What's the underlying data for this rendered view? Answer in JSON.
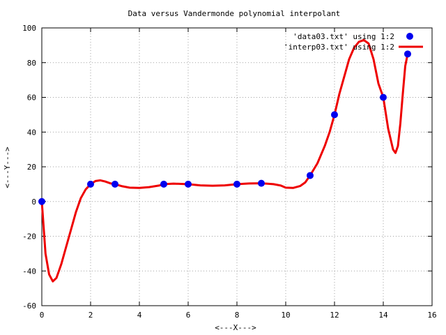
{
  "chart_data": {
    "type": "scatter",
    "title": "Data versus Vandermonde polynomial interpolant",
    "xlabel": "<---X--->",
    "ylabel": "<---Y--->",
    "xlim": [
      0,
      16
    ],
    "ylim": [
      -60,
      100
    ],
    "xticks": [
      0,
      2,
      4,
      6,
      8,
      10,
      12,
      14,
      16
    ],
    "yticks": [
      -60,
      -40,
      -20,
      0,
      20,
      40,
      60,
      80,
      100
    ],
    "grid": true,
    "legend_position": "top-right",
    "series": [
      {
        "name": "'data03.txt' using 1:2",
        "kind": "points",
        "color": "#0000ee",
        "x": [
          0,
          2,
          3,
          5,
          6,
          8,
          9,
          11,
          12,
          14,
          15
        ],
        "y": [
          0,
          10,
          10,
          10,
          10,
          10,
          10.5,
          15,
          50,
          60,
          85
        ]
      },
      {
        "name": "'interp03.txt' using 1:2",
        "kind": "line",
        "color": "#ee0000",
        "x": [
          0,
          0.15,
          0.3,
          0.45,
          0.6,
          0.8,
          1.0,
          1.2,
          1.4,
          1.6,
          1.8,
          2.0,
          2.2,
          2.4,
          2.6,
          2.8,
          3.0,
          3.3,
          3.6,
          4.0,
          4.4,
          4.8,
          5.0,
          5.4,
          5.8,
          6.0,
          6.5,
          7.0,
          7.5,
          8.0,
          8.5,
          9.0,
          9.5,
          9.8,
          10.0,
          10.3,
          10.6,
          10.8,
          11.0,
          11.3,
          11.6,
          11.8,
          12.0,
          12.2,
          12.4,
          12.6,
          12.8,
          13.0,
          13.2,
          13.4,
          13.6,
          13.8,
          14.0,
          14.2,
          14.4,
          14.5,
          14.6,
          14.7,
          14.8,
          14.9,
          15.0
        ],
        "y": [
          0,
          -30,
          -42,
          -46,
          -44,
          -36,
          -26,
          -16,
          -6,
          2,
          7,
          10,
          11.8,
          12.2,
          11.5,
          10.5,
          10,
          8.8,
          8,
          7.8,
          8.3,
          9.2,
          10,
          10.3,
          10.1,
          10,
          9.3,
          9.1,
          9.3,
          10,
          10.4,
          10.5,
          10,
          9.2,
          8,
          7.8,
          9,
          11,
          15,
          22,
          32,
          40,
          50,
          62,
          72,
          82,
          88.5,
          92,
          93,
          91,
          82,
          68,
          60,
          42,
          30,
          28,
          32,
          45,
          62,
          78,
          85
        ]
      }
    ]
  }
}
